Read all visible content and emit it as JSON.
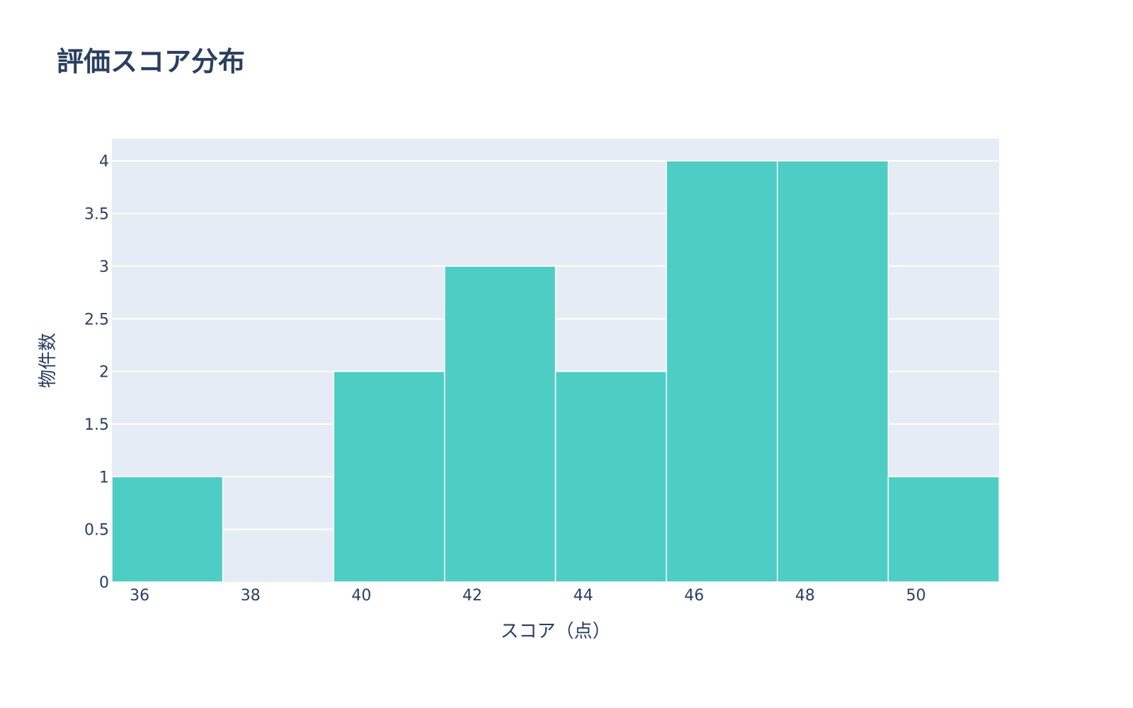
{
  "chart_data": {
    "type": "bar",
    "subtype": "histogram",
    "title": "評価スコア分布",
    "xlabel": "スコア（点）",
    "ylabel": "物件数",
    "bins": [
      {
        "x0": 35.5,
        "x1": 37.5,
        "count": 1
      },
      {
        "x0": 37.5,
        "x1": 39.5,
        "count": 0
      },
      {
        "x0": 39.5,
        "x1": 41.5,
        "count": 2
      },
      {
        "x0": 41.5,
        "x1": 43.5,
        "count": 3
      },
      {
        "x0": 43.5,
        "x1": 45.5,
        "count": 2
      },
      {
        "x0": 45.5,
        "x1": 47.5,
        "count": 4
      },
      {
        "x0": 47.5,
        "x1": 49.5,
        "count": 4
      },
      {
        "x0": 49.5,
        "x1": 51.5,
        "count": 1
      }
    ],
    "xlim": [
      35.5,
      51.5
    ],
    "ylim": [
      0,
      4.21
    ],
    "x_ticks": [
      36,
      38,
      40,
      42,
      44,
      46,
      48,
      50
    ],
    "y_ticks": [
      0,
      0.5,
      1,
      1.5,
      2,
      2.5,
      3,
      3.5,
      4
    ],
    "grid": true,
    "colors": {
      "bar": "#4ecdc4",
      "plot_background": "#e5ecf6",
      "gridline": "#ffffff",
      "text": "#2a3f5f"
    }
  }
}
